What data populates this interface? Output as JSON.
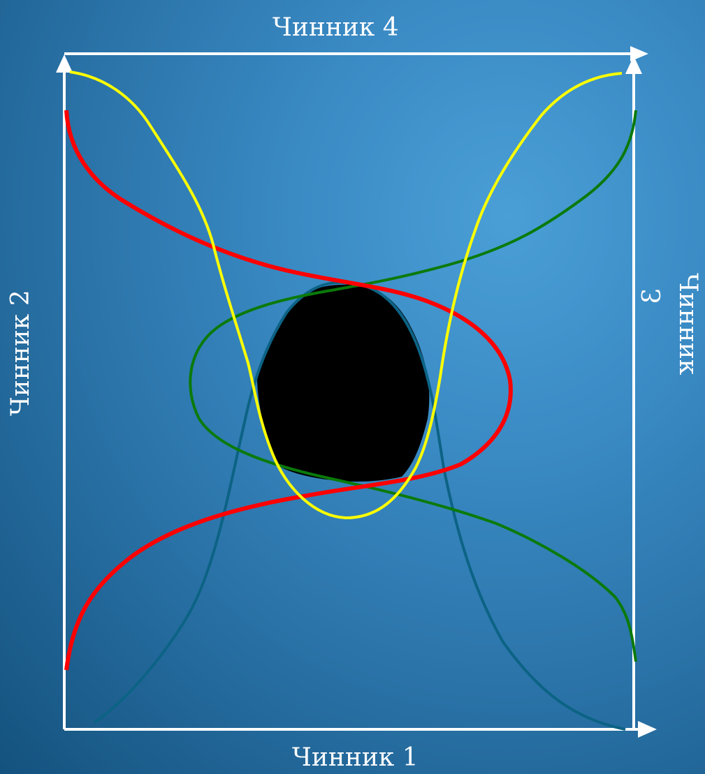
{
  "labels": {
    "factor_1": "Чинник 1",
    "factor_2": "Чинник 2",
    "factor_3_word": "Чинник",
    "factor_3_num": "3",
    "factor_4": "Чинник 4"
  },
  "colors": {
    "frame": "#ffffff",
    "curve_red": "#ff0000",
    "curve_green": "#0a7a0a",
    "curve_yellow": "#ffff00",
    "curve_teal": "#0c6385",
    "core": "#000000"
  }
}
